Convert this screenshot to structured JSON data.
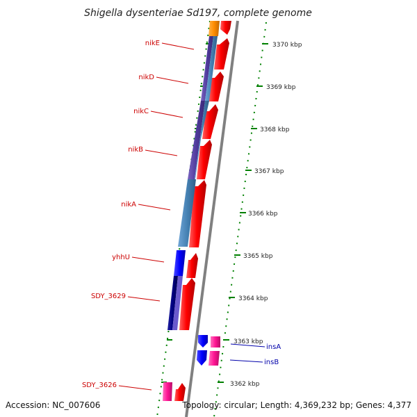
{
  "title": "Shigella dysenteriae Sd197, complete genome",
  "accession": "Accession: NC_007606",
  "topology": "Topology: circular; Length: 4,369,232 bp; Genes: 4,377",
  "kbp_ticks": [
    {
      "label": "3370 kbp"
    },
    {
      "label": "3369 kbp"
    },
    {
      "label": "3368 kbp"
    },
    {
      "label": "3367 kbp"
    },
    {
      "label": "3366 kbp"
    },
    {
      "label": "3365 kbp"
    },
    {
      "label": "3364 kbp"
    },
    {
      "label": "3363 kbp"
    },
    {
      "label": "3362 kbp"
    }
  ],
  "genes_left": [
    {
      "name": "nikE"
    },
    {
      "name": "nikD"
    },
    {
      "name": "nikC"
    },
    {
      "name": "nikB"
    },
    {
      "name": "nikA"
    },
    {
      "name": "yhhU"
    },
    {
      "name": "SDY_3629"
    },
    {
      "name": "SDY_3626"
    }
  ],
  "genes_right": [
    {
      "name": "insA"
    },
    {
      "name": "insB"
    }
  ],
  "colors": {
    "cds": "#ff0000",
    "orange": "#ff8c00",
    "blue": "#0000ff",
    "purple": "#5b3f9c",
    "steel_blue": "#4682b4",
    "navy": "#000080",
    "pink": "#ff1493",
    "backbone": "#808080",
    "ticks": "#008000",
    "left_label": "#cc0000",
    "right_label": "#0000aa"
  }
}
